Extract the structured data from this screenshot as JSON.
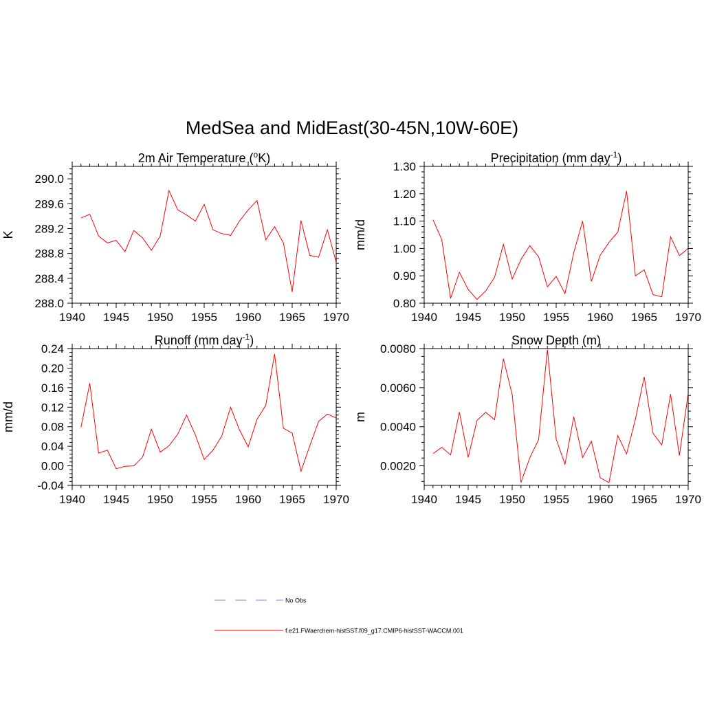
{
  "title": "MedSea and MidEast(30-45N,10W-60E)",
  "colors": {
    "model": "#ff0000",
    "obs": "#9999e6",
    "axis": "#000000"
  },
  "legend": [
    {
      "label": "No Obs",
      "style": "dashed",
      "color": "#9999e6"
    },
    {
      "label": "f.e21.FWaerchem-histSST.f09_g17.CMIP6-histSST-WACCM.001",
      "style": "solid",
      "color": "#ff0000"
    }
  ],
  "chart_data": [
    {
      "type": "line",
      "title": "2m Air Temperature (",
      "title_sup": "o",
      "title_after": "K)",
      "ylabel": "K",
      "xlim": [
        1940,
        1970
      ],
      "ylim": [
        288.0,
        290.2
      ],
      "xticks": [
        1940,
        1945,
        1950,
        1955,
        1960,
        1965,
        1970
      ],
      "xtick_labels": [
        "1940",
        "1945",
        "1950",
        "1955",
        "1960",
        "1965",
        "1970"
      ],
      "yticks": [
        288.0,
        288.4,
        288.8,
        289.2,
        289.6,
        290.0
      ],
      "ytick_labels": [
        "288.0",
        "288.4",
        "288.8",
        "289.2",
        "289.6",
        "290.0"
      ],
      "series": [
        {
          "color": "#ff0000",
          "x": [
            1941,
            1942,
            1943,
            1944,
            1945,
            1946,
            1947,
            1948,
            1949,
            1950,
            1951,
            1952,
            1953,
            1954,
            1955,
            1956,
            1957,
            1958,
            1959,
            1960,
            1961,
            1962,
            1963,
            1964,
            1965,
            1966,
            1967,
            1968,
            1969,
            1970
          ],
          "y": [
            289.37,
            289.43,
            289.08,
            288.97,
            289.01,
            288.83,
            289.17,
            289.05,
            288.85,
            289.08,
            289.81,
            289.5,
            289.42,
            289.32,
            289.59,
            289.18,
            289.12,
            289.09,
            289.32,
            289.5,
            289.65,
            289.02,
            289.23,
            288.97,
            288.18,
            289.33,
            288.77,
            288.74,
            289.18,
            288.66
          ]
        }
      ]
    },
    {
      "type": "line",
      "title": "Precipitation (mm day",
      "title_sup": "-1",
      "title_after": ")",
      "ylabel": "mm/d",
      "xlim": [
        1940,
        1970
      ],
      "ylim": [
        0.8,
        1.3
      ],
      "xticks": [
        1940,
        1945,
        1950,
        1955,
        1960,
        1965,
        1970
      ],
      "xtick_labels": [
        "1940",
        "1945",
        "1950",
        "1955",
        "1960",
        "1965",
        "1970"
      ],
      "yticks": [
        0.8,
        0.9,
        1.0,
        1.1,
        1.2,
        1.3
      ],
      "ytick_labels": [
        "0.80",
        "0.90",
        "1.00",
        "1.10",
        "1.20",
        "1.30"
      ],
      "series": [
        {
          "color": "#ff0000",
          "x": [
            1941,
            1942,
            1943,
            1944,
            1945,
            1946,
            1947,
            1948,
            1949,
            1950,
            1951,
            1952,
            1953,
            1954,
            1955,
            1956,
            1957,
            1958,
            1959,
            1960,
            1961,
            1962,
            1963,
            1964,
            1965,
            1966,
            1967,
            1968,
            1969,
            1970
          ],
          "y": [
            1.105,
            1.032,
            0.817,
            0.913,
            0.85,
            0.814,
            0.845,
            0.895,
            1.015,
            0.888,
            0.96,
            1.01,
            0.97,
            0.86,
            0.898,
            0.835,
            0.985,
            1.1,
            0.88,
            0.975,
            1.022,
            1.06,
            1.21,
            0.9,
            0.922,
            0.832,
            0.823,
            1.043,
            0.974,
            1.0
          ]
        }
      ]
    },
    {
      "type": "line",
      "title": "Runoff (mm day",
      "title_sup": "-1",
      "title_after": ")",
      "ylabel": "mm/d",
      "xlim": [
        1940,
        1970
      ],
      "ylim": [
        -0.04,
        0.24
      ],
      "xticks": [
        1940,
        1945,
        1950,
        1955,
        1960,
        1965,
        1970
      ],
      "xtick_labels": [
        "1940",
        "1945",
        "1950",
        "1955",
        "1960",
        "1965",
        "1970"
      ],
      "yticks": [
        -0.04,
        0.0,
        0.04,
        0.08,
        0.12,
        0.16,
        0.2,
        0.24
      ],
      "ytick_labels": [
        "-0.04",
        "0.00",
        "0.04",
        "0.08",
        "0.12",
        "0.16",
        "0.20",
        "0.24"
      ],
      "series": [
        {
          "color": "#ff0000",
          "x": [
            1941,
            1942,
            1943,
            1944,
            1945,
            1946,
            1947,
            1948,
            1949,
            1950,
            1951,
            1952,
            1953,
            1954,
            1955,
            1956,
            1957,
            1958,
            1959,
            1960,
            1961,
            1962,
            1963,
            1964,
            1965,
            1966,
            1967,
            1968,
            1969,
            1970
          ],
          "y": [
            0.079,
            0.169,
            0.026,
            0.032,
            -0.006,
            -0.001,
            0.0,
            0.018,
            0.075,
            0.028,
            0.041,
            0.065,
            0.104,
            0.063,
            0.013,
            0.032,
            0.061,
            0.12,
            0.074,
            0.039,
            0.095,
            0.124,
            0.229,
            0.077,
            0.067,
            -0.011,
            0.041,
            0.091,
            0.106,
            0.098
          ]
        }
      ]
    },
    {
      "type": "line",
      "title": "Snow Depth (m)",
      "title_sup": "",
      "title_after": "",
      "ylabel": "m",
      "xlim": [
        1940,
        1970
      ],
      "ylim": [
        0.001,
        0.008
      ],
      "xticks": [
        1940,
        1945,
        1950,
        1955,
        1960,
        1965,
        1970
      ],
      "xtick_labels": [
        "1940",
        "1945",
        "1950",
        "1955",
        "1960",
        "1965",
        "1970"
      ],
      "yticks": [
        0.002,
        0.004,
        0.006,
        0.008
      ],
      "ytick_labels": [
        "0.0020",
        "0.0040",
        "0.0060",
        "0.0080"
      ],
      "series": [
        {
          "color": "#ff0000",
          "x": [
            1941,
            1942,
            1943,
            1944,
            1945,
            1946,
            1947,
            1948,
            1949,
            1950,
            1951,
            1952,
            1953,
            1954,
            1955,
            1956,
            1957,
            1958,
            1959,
            1960,
            1961,
            1962,
            1963,
            1964,
            1965,
            1966,
            1967,
            1968,
            1969,
            1970
          ],
          "y": [
            0.00262,
            0.00295,
            0.00256,
            0.00475,
            0.00243,
            0.00432,
            0.00474,
            0.00436,
            0.00748,
            0.00564,
            0.00115,
            0.00241,
            0.00334,
            0.00795,
            0.00336,
            0.00208,
            0.00451,
            0.00242,
            0.00326,
            0.00139,
            0.00114,
            0.00355,
            0.00261,
            0.00438,
            0.00655,
            0.00367,
            0.00307,
            0.00567,
            0.00253,
            0.0057
          ]
        }
      ]
    }
  ]
}
